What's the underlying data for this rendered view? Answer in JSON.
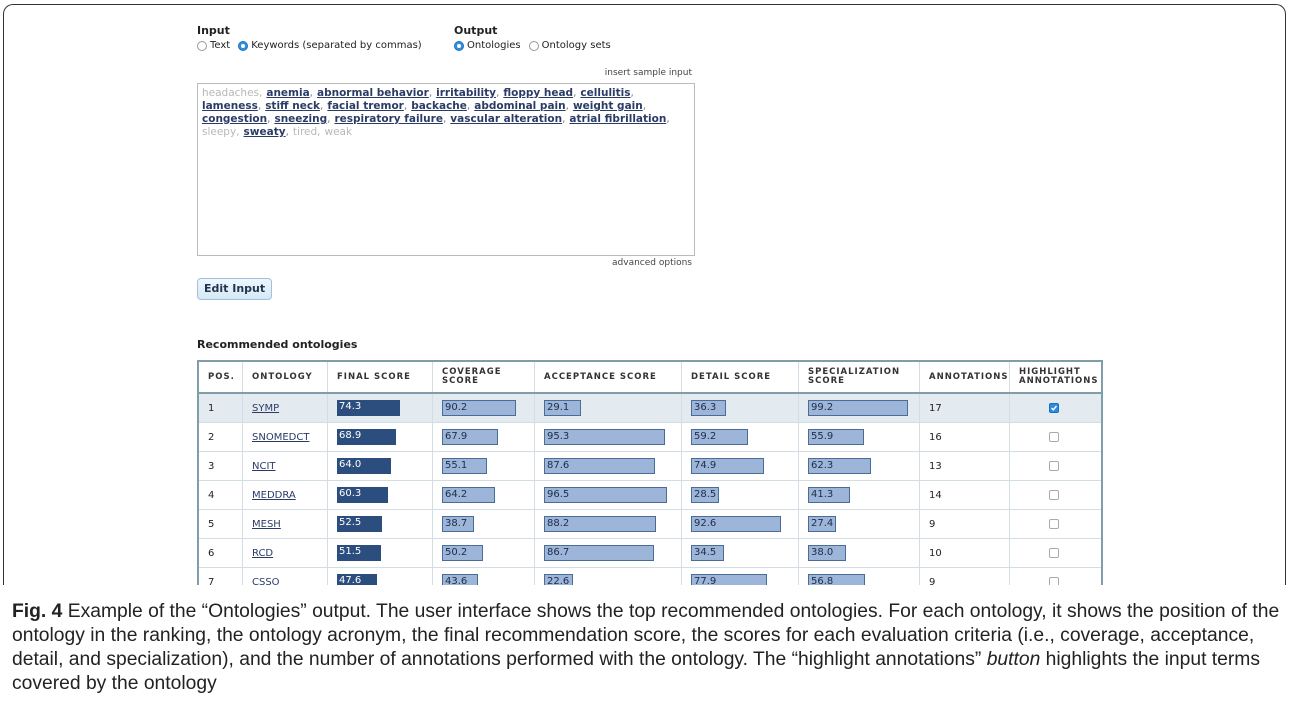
{
  "input": {
    "title": "Input",
    "options": [
      {
        "label": "Text",
        "selected": false
      },
      {
        "label": "Keywords (separated by commas)",
        "selected": true
      }
    ]
  },
  "output": {
    "title": "Output",
    "options": [
      {
        "label": "Ontologies",
        "selected": true
      },
      {
        "label": "Ontology sets",
        "selected": false
      }
    ]
  },
  "insert_sample_link": "insert sample input",
  "text_area": {
    "separator": ",",
    "terms": [
      {
        "text": "headaches",
        "covered": false
      },
      {
        "text": "anemia",
        "covered": true
      },
      {
        "text": "abnormal behavior",
        "covered": true
      },
      {
        "text": "irritability",
        "covered": true
      },
      {
        "text": "floppy head",
        "covered": true
      },
      {
        "text": "cellulitis",
        "covered": true
      },
      {
        "text": "lameness",
        "covered": true
      },
      {
        "text": "stiff neck",
        "covered": true
      },
      {
        "text": "facial tremor",
        "covered": true
      },
      {
        "text": "backache",
        "covered": true
      },
      {
        "text": "abdominal pain",
        "covered": true
      },
      {
        "text": "weight gain",
        "covered": true
      },
      {
        "text": "congestion",
        "covered": true
      },
      {
        "text": "sneezing",
        "covered": true
      },
      {
        "text": "respiratory failure",
        "covered": true
      },
      {
        "text": "vascular alteration",
        "covered": true
      },
      {
        "text": "atrial fibrillation",
        "covered": true
      },
      {
        "text": "sleepy",
        "covered": false
      },
      {
        "text": "sweaty",
        "covered": true
      },
      {
        "text": "tired",
        "covered": false
      },
      {
        "text": "weak",
        "covered": false
      }
    ]
  },
  "advanced_options_link": "advanced options",
  "edit_button": "Edit Input",
  "results": {
    "title": "Recommended ontologies",
    "columns": [
      "POS.",
      "ONTOLOGY",
      "FINAL SCORE",
      "COVERAGE SCORE",
      "ACCEPTANCE SCORE",
      "DETAIL SCORE",
      "SPECIALIZATION SCORE",
      "ANNOTATIONS",
      "HIGHLIGHT ANNOTATIONS"
    ],
    "rows": [
      {
        "pos": 1,
        "ontology": "SYMP",
        "final_score": "74.3",
        "coverage_score": "90.2",
        "acceptance_score": "29.1",
        "detail_score": "36.3",
        "specialization_score": "99.2",
        "annotations": 17,
        "highlight": true
      },
      {
        "pos": 2,
        "ontology": "SNOMEDCT",
        "final_score": "68.9",
        "coverage_score": "67.9",
        "acceptance_score": "95.3",
        "detail_score": "59.2",
        "specialization_score": "55.9",
        "annotations": 16,
        "highlight": false
      },
      {
        "pos": 3,
        "ontology": "NCIT",
        "final_score": "64.0",
        "coverage_score": "55.1",
        "acceptance_score": "87.6",
        "detail_score": "74.9",
        "specialization_score": "62.3",
        "annotations": 13,
        "highlight": false
      },
      {
        "pos": 4,
        "ontology": "MEDDRA",
        "final_score": "60.3",
        "coverage_score": "64.2",
        "acceptance_score": "96.5",
        "detail_score": "28.5",
        "specialization_score": "41.3",
        "annotations": 14,
        "highlight": false
      },
      {
        "pos": 5,
        "ontology": "MESH",
        "final_score": "52.5",
        "coverage_score": "38.7",
        "acceptance_score": "88.2",
        "detail_score": "92.6",
        "specialization_score": "27.4",
        "annotations": 9,
        "highlight": false
      },
      {
        "pos": 6,
        "ontology": "RCD",
        "final_score": "51.5",
        "coverage_score": "50.2",
        "acceptance_score": "86.7",
        "detail_score": "34.5",
        "specialization_score": "38.0",
        "annotations": 10,
        "highlight": false
      },
      {
        "pos": 7,
        "ontology": "CSSO",
        "final_score": "47.6",
        "coverage_score": "43.6",
        "acceptance_score": "22.6",
        "detail_score": "77.9",
        "specialization_score": "56.8",
        "annotations": 9,
        "highlight": false
      }
    ]
  },
  "caption": {
    "label": "Fig. 4",
    "text": " Example of the “Ontologies” output. The user interface shows the top recommended ontologies. For each ontology, it shows the position of the ontology in the ranking, the ontology acronym, the final recommendation score, the scores for each evaluation criteria (i.e., coverage, acceptance, detail, and specialization), and the number of annotations performed with the ontology. The “highlight annotations” ",
    "emphasis": "button",
    "text_end": " highlights the input terms covered by the ontology"
  }
}
